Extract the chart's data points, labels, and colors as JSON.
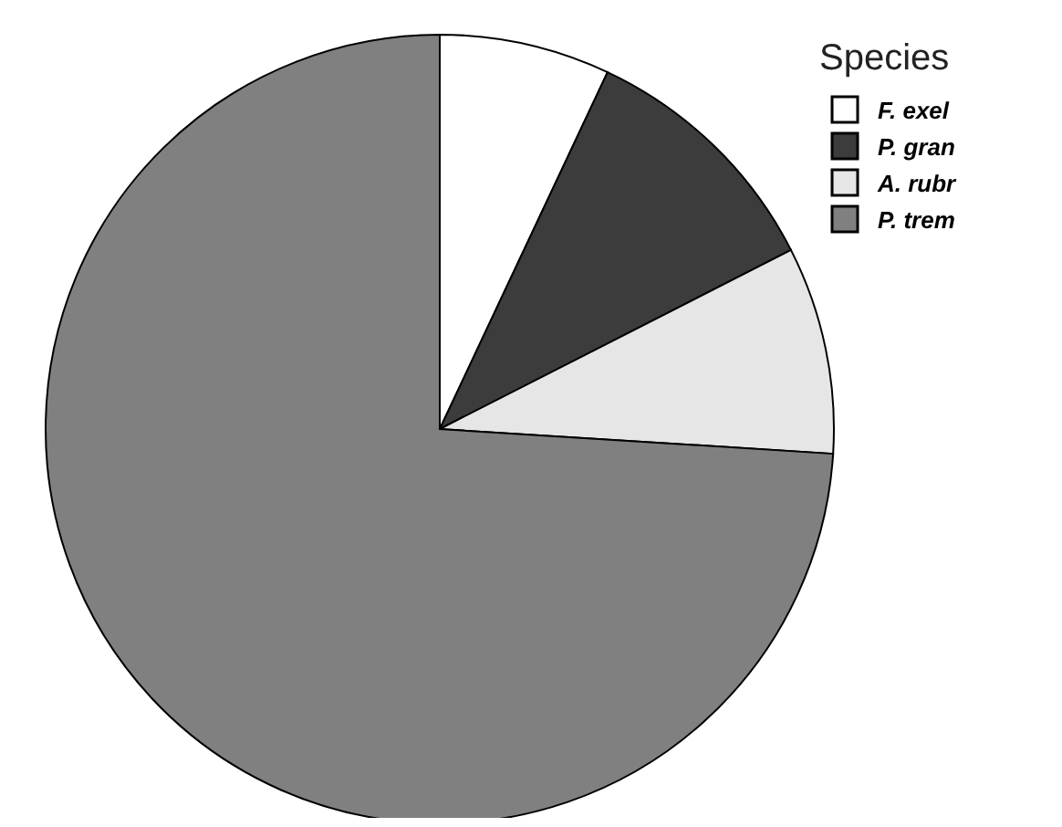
{
  "chart_data": {
    "type": "pie",
    "legend_title": "Species",
    "legend": "top right",
    "categories": [
      "F. exel",
      "P. gran",
      "A. rubr",
      "P. trem"
    ],
    "values": [
      7,
      10.5,
      8.5,
      74
    ],
    "colors": [
      "#ffffff",
      "#3c3c3c",
      "#e6e6e6",
      "#808080"
    ]
  }
}
